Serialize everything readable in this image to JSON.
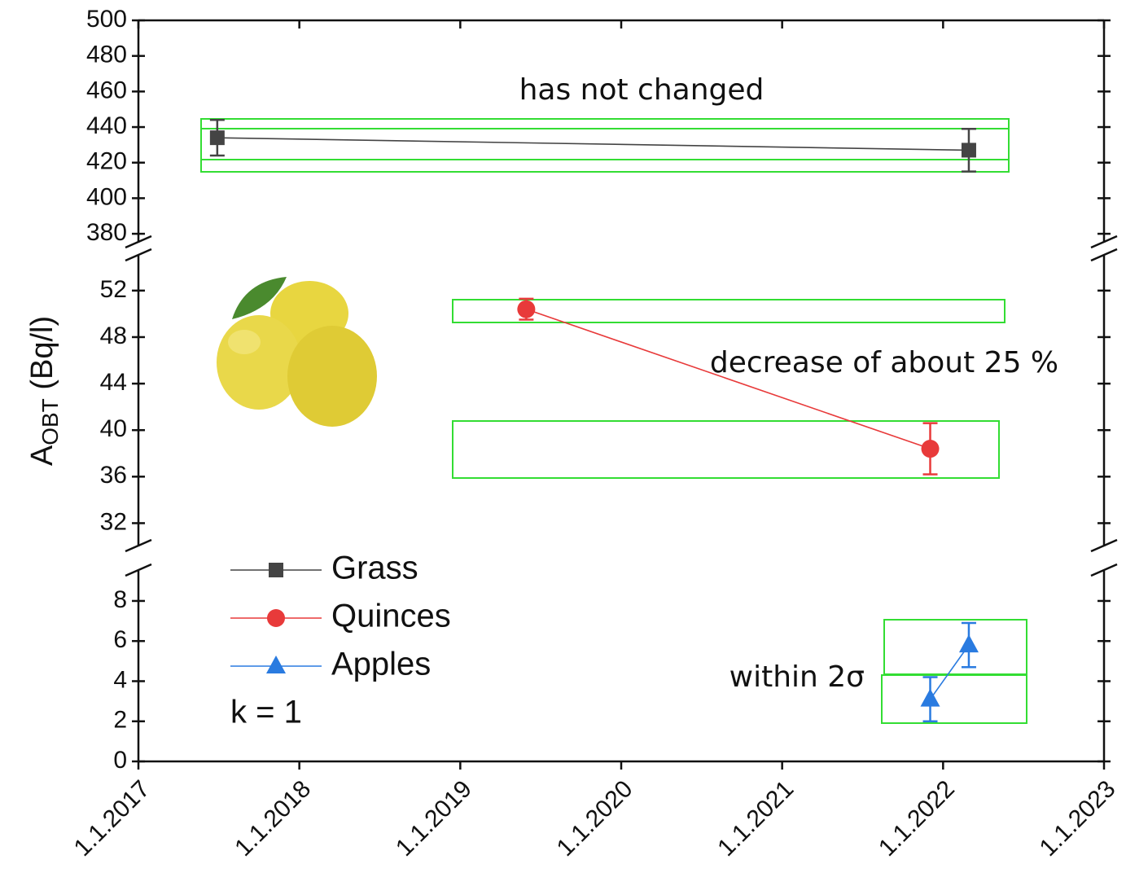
{
  "chart_data": {
    "type": "line",
    "ylabel_parts": [
      "A",
      "OBT",
      " (Bq/l)"
    ],
    "xlim": [
      2017,
      2023
    ],
    "xticks": [
      {
        "value": 2017,
        "label": "1.1.2017"
      },
      {
        "value": 2018,
        "label": "1.1.2018"
      },
      {
        "value": 2019,
        "label": "1.1.2019"
      },
      {
        "value": 2020,
        "label": "1.1.2020"
      },
      {
        "value": 2021,
        "label": "1.1.2021"
      },
      {
        "value": 2022,
        "label": "1.1.2022"
      },
      {
        "value": 2023,
        "label": "1.1.2023"
      }
    ],
    "panels": [
      {
        "ylim": [
          375,
          500
        ],
        "yticks": [
          380,
          400,
          420,
          440,
          460,
          480,
          500
        ]
      },
      {
        "ylim": [
          30,
          55
        ],
        "yticks": [
          32,
          36,
          40,
          44,
          48,
          52
        ]
      },
      {
        "ylim": [
          0,
          9.5
        ],
        "yticks": [
          0,
          2,
          4,
          6,
          8
        ]
      }
    ],
    "series": [
      {
        "name": "Grass",
        "color": "#444444",
        "marker": "square",
        "panel": 0,
        "x": [
          2017.49,
          2022.16
        ],
        "values": [
          434,
          427
        ],
        "errors": [
          10,
          12
        ]
      },
      {
        "name": "Quinces",
        "color": "#e83a3a",
        "marker": "circle",
        "panel": 1,
        "x": [
          2019.41,
          2021.92
        ],
        "values": [
          50.4,
          38.4
        ],
        "errors": [
          0.9,
          2.2
        ]
      },
      {
        "name": "Apples",
        "color": "#2a7be0",
        "marker": "triangle",
        "panel": 2,
        "x": [
          2021.92,
          2022.16
        ],
        "values": [
          3.1,
          5.8
        ],
        "errors": [
          1.1,
          1.1
        ]
      }
    ],
    "annotations": [
      "has not changed",
      "decrease of about 25 %",
      "within 2σ",
      "k = 1"
    ]
  }
}
